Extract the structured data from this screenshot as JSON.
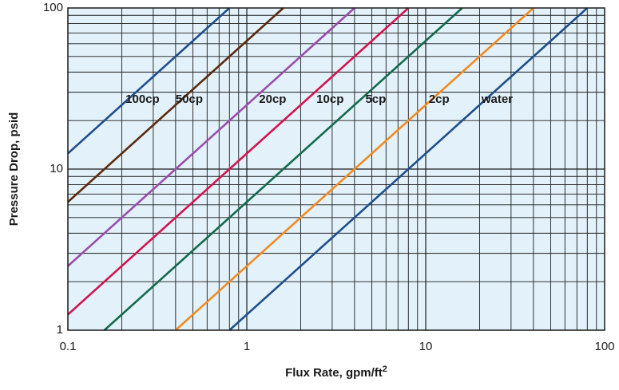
{
  "chart_data": {
    "type": "line",
    "xlabel": "Flux Rate, gpm/ft",
    "xlabel_sup": "2",
    "ylabel": "Pressure Drop, psid",
    "x_scale": "log",
    "y_scale": "log",
    "xlim": [
      0.1,
      100
    ],
    "ylim": [
      1,
      100
    ],
    "x_ticks": [
      0.1,
      1,
      10,
      100
    ],
    "x_tick_labels": [
      "0.1",
      "1",
      "10",
      "100"
    ],
    "y_ticks": [
      1,
      10,
      100
    ],
    "y_tick_labels": [
      "1",
      "10",
      "100"
    ],
    "grid": true,
    "background_color": "#e3f2fa",
    "series": [
      {
        "name": "100cp",
        "color": "#1f4e8c",
        "x": [
          0.1,
          0.8
        ],
        "y": [
          12.5,
          100
        ]
      },
      {
        "name": "50cp",
        "color": "#5c2a0e",
        "x": [
          0.1,
          1.6
        ],
        "y": [
          6.25,
          100
        ]
      },
      {
        "name": "20cp",
        "color": "#9a4dad",
        "x": [
          0.1,
          4.0
        ],
        "y": [
          2.5,
          100
        ]
      },
      {
        "name": "10cp",
        "color": "#d3134f",
        "x": [
          0.1,
          8.0
        ],
        "y": [
          1.25,
          100
        ]
      },
      {
        "name": "5cp",
        "color": "#136a4c",
        "x": [
          0.16,
          16.0
        ],
        "y": [
          1,
          100
        ]
      },
      {
        "name": "2cp",
        "color": "#f28a22",
        "x": [
          0.4,
          40.0
        ],
        "y": [
          1,
          100
        ]
      },
      {
        "name": "water",
        "color": "#1f4e8c",
        "x": [
          0.8,
          80.0
        ],
        "y": [
          1,
          100
        ]
      }
    ],
    "series_label_positions": [
      {
        "name": "100cp",
        "x": 0.21,
        "y": 27
      },
      {
        "name": "50cp",
        "x": 0.4,
        "y": 27
      },
      {
        "name": "20cp",
        "x": 1.17,
        "y": 27
      },
      {
        "name": "10cp",
        "x": 2.45,
        "y": 27
      },
      {
        "name": "5cp",
        "x": 4.6,
        "y": 27
      },
      {
        "name": "2cp",
        "x": 10.4,
        "y": 27
      },
      {
        "name": "water",
        "x": 20.5,
        "y": 27
      }
    ]
  }
}
